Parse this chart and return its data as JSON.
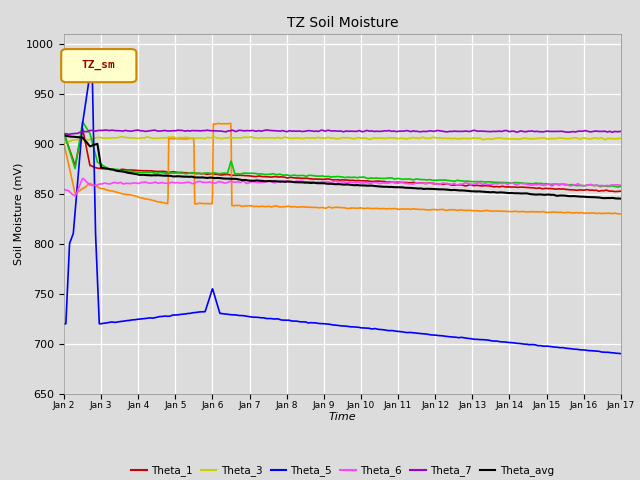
{
  "title": "TZ Soil Moisture",
  "xlabel": "Time",
  "ylabel": "Soil Moisture (mV)",
  "ylim": [
    650,
    1010
  ],
  "yticks": [
    650,
    700,
    750,
    800,
    850,
    900,
    950,
    1000
  ],
  "background_color": "#dcdcdc",
  "legend_label": "TZ_sm",
  "series": {
    "Theta_1": {
      "color": "#cc0000"
    },
    "Theta_2": {
      "color": "#ff8800"
    },
    "Theta_3": {
      "color": "#cccc00"
    },
    "Theta_4": {
      "color": "#00cc00"
    },
    "Theta_5": {
      "color": "#0000ff"
    },
    "Theta_6": {
      "color": "#ff44ff"
    },
    "Theta_7": {
      "color": "#9900cc"
    },
    "Theta_avg": {
      "color": "#000000"
    }
  },
  "xtick_labels": [
    "Jan 2",
    "Jan 3",
    "Jan 4",
    "Jan 5",
    "Jan 6",
    "Jan 7",
    "Jan 8",
    "Jan 9",
    "Jan 10",
    "Jan 11",
    "Jan 12",
    "Jan 13",
    "Jan 14",
    "Jan 15",
    "Jan 16",
    "Jan 17"
  ]
}
